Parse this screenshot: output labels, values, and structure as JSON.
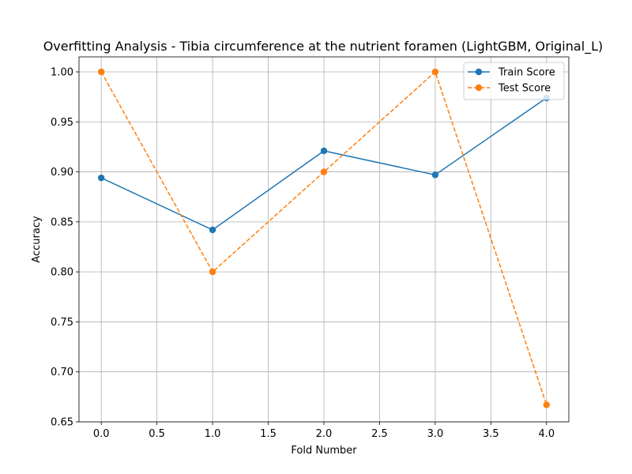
{
  "chart_data": {
    "type": "line",
    "title": "Overfitting Analysis - Tibia circumference at the nutrient foramen (LightGBM, Original_L)",
    "xlabel": "Fold Number",
    "ylabel": "Accuracy",
    "x": [
      0,
      1,
      2,
      3,
      4
    ],
    "xlim": [
      -0.2,
      4.2
    ],
    "ylim": [
      0.65,
      1.015
    ],
    "xticks": [
      0.0,
      0.5,
      1.0,
      1.5,
      2.0,
      2.5,
      3.0,
      3.5,
      4.0
    ],
    "xtick_labels": [
      "0.0",
      "0.5",
      "1.0",
      "1.5",
      "2.0",
      "2.5",
      "3.0",
      "3.5",
      "4.0"
    ],
    "yticks": [
      0.65,
      0.7,
      0.75,
      0.8,
      0.85,
      0.9,
      0.95,
      1.0
    ],
    "ytick_labels": [
      "0.65",
      "0.70",
      "0.75",
      "0.80",
      "0.85",
      "0.90",
      "0.95",
      "1.00"
    ],
    "grid": true,
    "legend_position": "top-right",
    "series": [
      {
        "name": "Train Score",
        "values": [
          0.894,
          0.842,
          0.921,
          0.897,
          0.974
        ],
        "color": "#1f77b4",
        "line_style": "solid",
        "marker": "circle"
      },
      {
        "name": "Test Score",
        "values": [
          1.0,
          0.8,
          0.9,
          1.0,
          0.667
        ],
        "color": "#ff7f0e",
        "line_style": "dashed",
        "marker": "circle"
      }
    ]
  }
}
